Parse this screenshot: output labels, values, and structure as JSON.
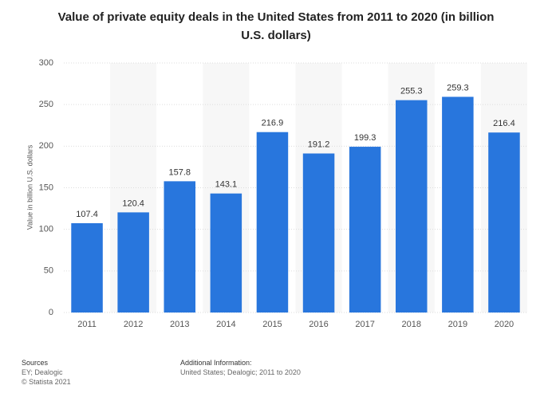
{
  "chart_data": {
    "type": "bar",
    "title": "Value of private equity deals in the United States from 2011 to 2020 (in billion U.S. dollars)",
    "y_label": "Value in billion U.S. dollars",
    "categories": [
      "2011",
      "2012",
      "2013",
      "2014",
      "2015",
      "2016",
      "2017",
      "2018",
      "2019",
      "2020"
    ],
    "values": [
      107.4,
      120.4,
      157.8,
      143.1,
      216.9,
      191.2,
      199.3,
      255.3,
      259.3,
      216.4
    ],
    "color": "#2876dd",
    "ylim": [
      0,
      300
    ],
    "yticks": [
      0,
      50,
      100,
      150,
      200,
      250,
      300
    ],
    "grid": true
  },
  "footer": {
    "sources_heading": "Sources",
    "sources": "EY; Dealogic",
    "copyright": "© Statista 2021",
    "additional_heading": "Additional Information:",
    "additional": "United States; Dealogic; 2011 to 2020"
  }
}
